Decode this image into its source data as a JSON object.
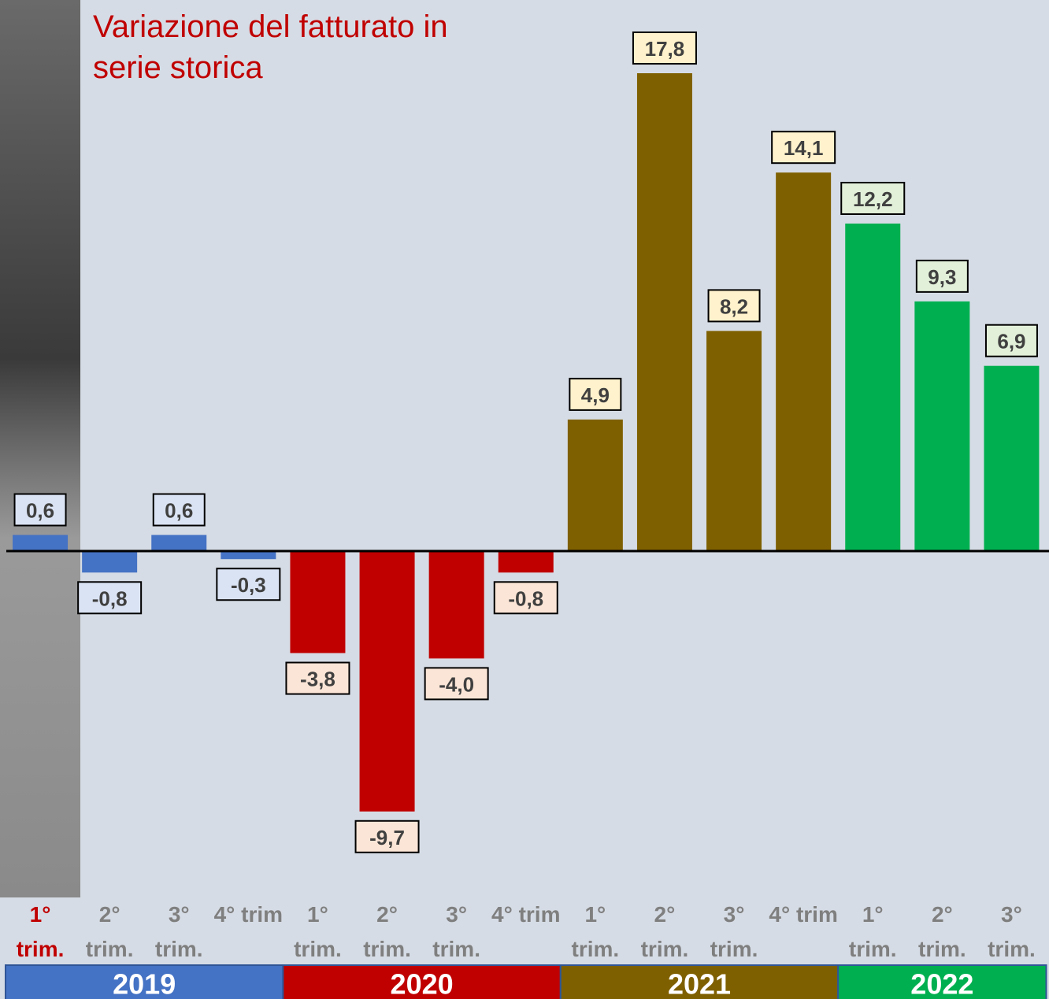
{
  "chart_data": {
    "type": "bar",
    "title": "Variazione del fatturato in serie storica",
    "title_color": "#c00000",
    "categories": [
      "1° trim.",
      "2° trim.",
      "3° trim.",
      "4° trim",
      "1° trim.",
      "2° trim.",
      "3° trim.",
      "4° trim",
      "1° trim.",
      "2° trim.",
      "3° trim.",
      "4° trim",
      "1° trim.",
      "2° trim.",
      "3° trim."
    ],
    "series": [
      {
        "name": "2019",
        "color": "#4472c4",
        "label_fill": "#dae3f3",
        "values": [
          0.6,
          -0.8,
          0.6,
          -0.3,
          null,
          null,
          null,
          null,
          null,
          null,
          null,
          null,
          null,
          null,
          null
        ],
        "value_labels": [
          "0,6",
          "-0,8",
          "0,6",
          "-0,3",
          null,
          null,
          null,
          null,
          null,
          null,
          null,
          null,
          null,
          null,
          null
        ]
      },
      {
        "name": "2020",
        "color": "#c00000",
        "label_fill": "#fbe5d6",
        "values": [
          null,
          null,
          null,
          null,
          -3.8,
          -9.7,
          -4,
          -0.8,
          null,
          null,
          null,
          null,
          null,
          null,
          null
        ],
        "value_labels": [
          null,
          null,
          null,
          null,
          "-3,8",
          "-9,7",
          "-4,0",
          "-0,8",
          null,
          null,
          null,
          null,
          null,
          null,
          null
        ]
      },
      {
        "name": "2021",
        "color": "#7f6000",
        "label_fill": "#fff2cc",
        "values": [
          null,
          null,
          null,
          null,
          null,
          null,
          null,
          null,
          4.9,
          17.8,
          8.2,
          14.1,
          null,
          null,
          null
        ],
        "value_labels": [
          null,
          null,
          null,
          null,
          null,
          null,
          null,
          null,
          "4,9",
          "17,8",
          "8,2",
          "14,1",
          null,
          null,
          null
        ]
      },
      {
        "name": "2022",
        "color": "#00b050",
        "label_fill": "#e2f0d9",
        "values": [
          null,
          null,
          null,
          null,
          null,
          null,
          null,
          null,
          null,
          null,
          null,
          null,
          12.2,
          9.3,
          6.9
        ],
        "value_labels": [
          null,
          null,
          null,
          null,
          null,
          null,
          null,
          null,
          null,
          null,
          null,
          null,
          "12,2",
          "9,3",
          "6,9"
        ]
      }
    ]
  }
}
